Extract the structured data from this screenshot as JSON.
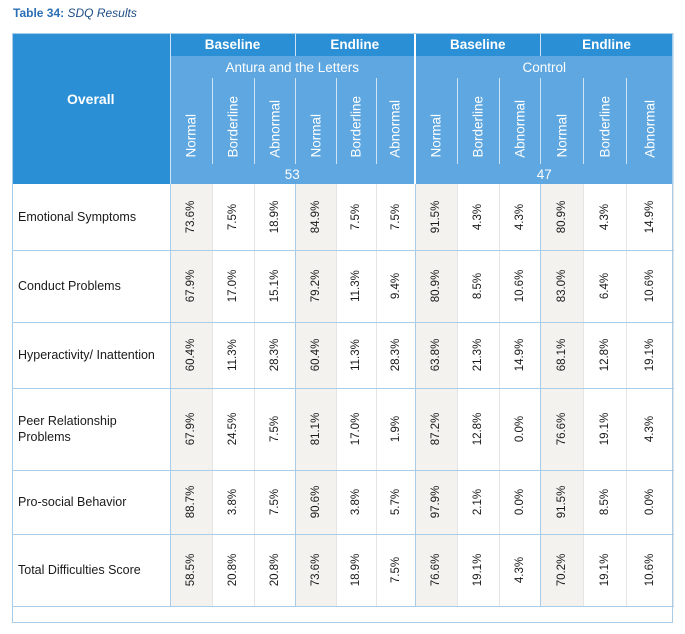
{
  "caption": {
    "number": "Table 34:",
    "title": "SDQ Results"
  },
  "header": {
    "overall": "Overall",
    "periods": [
      "Baseline",
      "Endline",
      "Baseline",
      "Endline"
    ],
    "groups": [
      "Antura and the Letters",
      "Control"
    ],
    "columns": [
      "Normal",
      "Borderline",
      "Abnormal",
      "Normal",
      "Borderline",
      "Abnormal",
      "Normal",
      "Borderline",
      "Abnormal",
      "Normal",
      "Borderline",
      "Abnormal"
    ],
    "counts": [
      "53",
      "47"
    ]
  },
  "rows": [
    {
      "label": "Emotional Symptoms",
      "values": [
        "73.6%",
        "7.5%",
        "18.9%",
        "84.9%",
        "7.5%",
        "7.5%",
        "91.5%",
        "4.3%",
        "4.3%",
        "80.9%",
        "4.3%",
        "14.9%"
      ]
    },
    {
      "label": "Conduct Problems",
      "values": [
        "67.9%",
        "17.0%",
        "15.1%",
        "79.2%",
        "11.3%",
        "9.4%",
        "80.9%",
        "8.5%",
        "10.6%",
        "83.0%",
        "6.4%",
        "10.6%"
      ]
    },
    {
      "label": "Hyperactivity/ Inattention",
      "values": [
        "60.4%",
        "11.3%",
        "28.3%",
        "60.4%",
        "11.3%",
        "28.3%",
        "63.8%",
        "21.3%",
        "14.9%",
        "68.1%",
        "12.8%",
        "19.1%"
      ]
    },
    {
      "label": "Peer Relationship Problems",
      "values": [
        "67.9%",
        "24.5%",
        "7.5%",
        "81.1%",
        "17.0%",
        "1.9%",
        "87.2%",
        "12.8%",
        "0.0%",
        "76.6%",
        "19.1%",
        "4.3%"
      ]
    },
    {
      "label": "Pro-social Behavior",
      "values": [
        "88.7%",
        "3.8%",
        "7.5%",
        "90.6%",
        "3.8%",
        "5.7%",
        "97.9%",
        "2.1%",
        "0.0%",
        "91.5%",
        "8.5%",
        "0.0%"
      ]
    },
    {
      "label": "Total Difficulties Score",
      "values": [
        "58.5%",
        "20.8%",
        "20.8%",
        "73.6%",
        "18.9%",
        "7.5%",
        "76.6%",
        "19.1%",
        "4.3%",
        "70.2%",
        "19.1%",
        "10.6%"
      ]
    }
  ],
  "colors": {
    "header_dark": "#2b8fd6",
    "header_light": "#5ea7e0",
    "caption": "#2a6fb5",
    "row_rule": "#a9cde9",
    "shade": "#f3f2ef"
  }
}
